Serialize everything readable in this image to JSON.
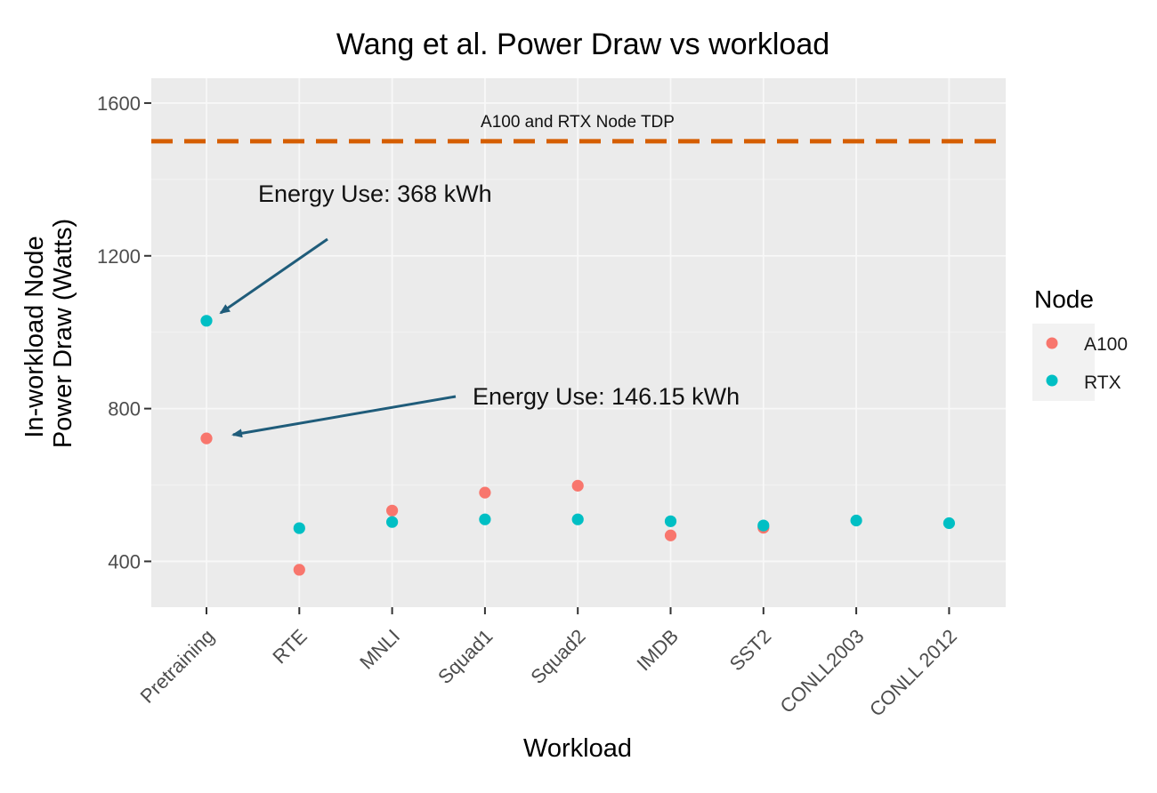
{
  "chart_data": {
    "type": "scatter",
    "title": "Wang et al. Power Draw vs workload",
    "xlabel": "Workload",
    "ylabel": [
      "In-workload Node",
      "Power Draw (Watts)"
    ],
    "categories": [
      "Pretraining",
      "RTE",
      "MNLI",
      "Squad1",
      "Squad2",
      "IMDB",
      "SST2",
      "CONLL2003",
      "CONLL 2012"
    ],
    "ylim": [
      280,
      1665
    ],
    "yticks": [
      400,
      800,
      1200,
      1600
    ],
    "grid": true,
    "series": [
      {
        "name": "A100",
        "color": "#f8766d",
        "values": [
          722,
          378,
          533,
          580,
          598,
          468,
          488,
          null,
          null
        ]
      },
      {
        "name": "RTX",
        "color": "#00bfc4",
        "values": [
          1030,
          487,
          503,
          510,
          510,
          505,
          494,
          507,
          500
        ]
      }
    ],
    "reference_line": {
      "y": 1500,
      "label": "A100 and RTX Node TDP",
      "color": "#d55e00"
    },
    "annotations": [
      {
        "text": "Energy Use: 368 kWh",
        "category": "Pretraining",
        "y": 1030,
        "series": "RTX"
      },
      {
        "text": "Energy Use: 146.15 kWh",
        "category": "Pretraining",
        "y": 722,
        "series": "A100"
      }
    ],
    "legend": {
      "title": "Node",
      "position": "right"
    }
  }
}
